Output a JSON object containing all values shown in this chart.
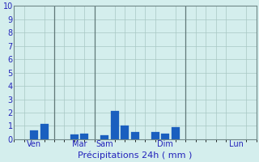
{
  "title": "",
  "xlabel": "Précipitations 24h ( mm )",
  "ylabel": "",
  "ylim": [
    0,
    10
  ],
  "background_color": "#d4eeed",
  "bar_color": "#1a5fbf",
  "bar_edge_color": "#1a5fbf",
  "grid_color": "#a8c8c4",
  "tick_label_color": "#2222bb",
  "xlabel_color": "#2222bb",
  "xlabel_fontsize": 8,
  "tick_fontsize": 7,
  "day_labels": [
    "Ven",
    "Mar",
    "Sam",
    "Dim",
    "Lun"
  ],
  "yticks": [
    0,
    1,
    2,
    3,
    4,
    5,
    6,
    7,
    8,
    9,
    10
  ],
  "bar_x": [
    2,
    3,
    6,
    7,
    9,
    10,
    11,
    12,
    14,
    15,
    16,
    18
  ],
  "bar_height": [
    0.65,
    1.15,
    0.35,
    0.4,
    0.3,
    2.1,
    1.0,
    0.55,
    0.55,
    0.4,
    0.9,
    0.0
  ],
  "bar_width": 0.8,
  "total_bins": 24,
  "day_label_bins": [
    2,
    6.5,
    9,
    15,
    22
  ],
  "vline_dark_bins": [
    4,
    8,
    17
  ],
  "spine_color": "#708888"
}
